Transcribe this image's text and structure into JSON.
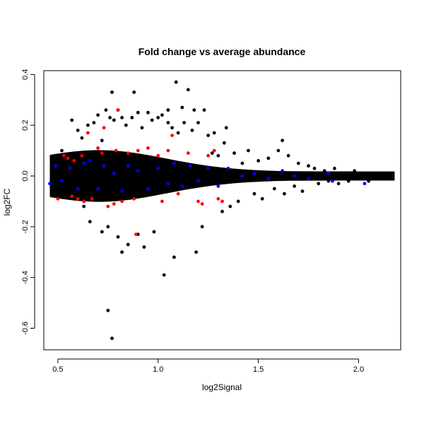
{
  "chart_data": {
    "type": "scatter",
    "title": "Fold change vs average abundance",
    "xlabel": "log2Signal",
    "ylabel": "log2FC",
    "xlim": [
      0.43,
      2.21
    ],
    "ylim": [
      -0.685,
      0.415
    ],
    "x_ticks": [
      0.5,
      1.0,
      1.5,
      2.0
    ],
    "x_tick_labels": [
      "0.5",
      "1.0",
      "1.5",
      "2.0"
    ],
    "y_ticks": [
      -0.6,
      -0.4,
      -0.2,
      0.0,
      0.2,
      0.4
    ],
    "y_tick_labels": [
      "-0.6",
      "-0.4",
      "-0.2",
      "0.0",
      "0.2",
      "0.4"
    ],
    "grid": false,
    "legend": "none",
    "colors": {
      "background": "#000000",
      "red": "#ff0000",
      "blue": "#0000ff"
    },
    "series": [
      {
        "color": "#000000",
        "values": [
          [
            0.47,
            -0.03
          ],
          [
            0.48,
            0.02
          ],
          [
            0.5,
            -0.05
          ],
          [
            0.52,
            0.1
          ],
          [
            0.55,
            -0.08
          ],
          [
            0.57,
            0.22
          ],
          [
            0.6,
            0.18
          ],
          [
            0.62,
            0.15
          ],
          [
            0.63,
            -0.12
          ],
          [
            0.65,
            0.2
          ],
          [
            0.66,
            -0.18
          ],
          [
            0.68,
            0.21
          ],
          [
            0.7,
            0.24
          ],
          [
            0.72,
            0.14
          ],
          [
            0.72,
            -0.22
          ],
          [
            0.74,
            0.26
          ],
          [
            0.75,
            -0.53
          ],
          [
            0.75,
            -0.2
          ],
          [
            0.76,
            0.23
          ],
          [
            0.77,
            0.33
          ],
          [
            0.77,
            -0.64
          ],
          [
            0.78,
            0.22
          ],
          [
            0.8,
            0.26
          ],
          [
            0.8,
            -0.24
          ],
          [
            0.82,
            0.23
          ],
          [
            0.82,
            -0.3
          ],
          [
            0.84,
            0.2
          ],
          [
            0.85,
            -0.27
          ],
          [
            0.87,
            0.23
          ],
          [
            0.88,
            0.33
          ],
          [
            0.9,
            0.25
          ],
          [
            0.9,
            -0.23
          ],
          [
            0.92,
            0.19
          ],
          [
            0.93,
            -0.28
          ],
          [
            0.95,
            0.25
          ],
          [
            0.97,
            0.22
          ],
          [
            0.98,
            -0.22
          ],
          [
            1.0,
            0.23
          ],
          [
            1.02,
            0.24
          ],
          [
            1.03,
            -0.39
          ],
          [
            1.05,
            0.26
          ],
          [
            1.05,
            0.21
          ],
          [
            1.07,
            0.19
          ],
          [
            1.08,
            -0.32
          ],
          [
            1.09,
            0.37
          ],
          [
            1.1,
            0.17
          ],
          [
            1.12,
            0.27
          ],
          [
            1.13,
            0.21
          ],
          [
            1.15,
            0.34
          ],
          [
            1.17,
            0.18
          ],
          [
            1.18,
            0.26
          ],
          [
            1.19,
            -0.3
          ],
          [
            1.2,
            0.21
          ],
          [
            1.22,
            -0.2
          ],
          [
            1.23,
            0.26
          ],
          [
            1.25,
            0.16
          ],
          [
            1.27,
            0.09
          ],
          [
            1.28,
            0.17
          ],
          [
            1.3,
            0.08
          ],
          [
            1.32,
            -0.14
          ],
          [
            1.33,
            0.13
          ],
          [
            1.34,
            0.19
          ],
          [
            1.36,
            -0.12
          ],
          [
            1.38,
            0.09
          ],
          [
            1.4,
            -0.1
          ],
          [
            1.42,
            0.05
          ],
          [
            1.45,
            0.1
          ],
          [
            1.48,
            -0.07
          ],
          [
            1.5,
            0.06
          ],
          [
            1.52,
            -0.09
          ],
          [
            1.55,
            0.07
          ],
          [
            1.58,
            -0.05
          ],
          [
            1.6,
            0.1
          ],
          [
            1.62,
            0.14
          ],
          [
            1.63,
            -0.07
          ],
          [
            1.65,
            0.08
          ],
          [
            1.68,
            -0.04
          ],
          [
            1.7,
            0.05
          ],
          [
            1.72,
            -0.06
          ],
          [
            1.75,
            0.04
          ],
          [
            1.78,
            0.03
          ],
          [
            1.8,
            -0.03
          ],
          [
            1.83,
            0.02
          ],
          [
            1.85,
            -0.02
          ],
          [
            1.88,
            0.03
          ],
          [
            1.9,
            -0.03
          ],
          [
            1.92,
            0.01
          ],
          [
            1.95,
            -0.02
          ],
          [
            1.98,
            0.02
          ],
          [
            2.0,
            -0.01
          ],
          [
            2.03,
            0.0
          ],
          [
            2.05,
            -0.02
          ],
          [
            2.08,
            0.01
          ],
          [
            2.1,
            -0.01
          ],
          [
            2.12,
            0.01
          ],
          [
            2.15,
            0.0
          ],
          [
            2.17,
            0.0
          ]
        ]
      },
      {
        "color": "#ff0000",
        "values": [
          [
            0.5,
            -0.09
          ],
          [
            0.53,
            0.08
          ],
          [
            0.55,
            0.07
          ],
          [
            0.57,
            -0.08
          ],
          [
            0.58,
            0.06
          ],
          [
            0.6,
            -0.09
          ],
          [
            0.62,
            0.08
          ],
          [
            0.63,
            -0.1
          ],
          [
            0.65,
            0.17
          ],
          [
            0.67,
            -0.09
          ],
          [
            0.7,
            0.11
          ],
          [
            0.72,
            0.09
          ],
          [
            0.73,
            0.19
          ],
          [
            0.75,
            -0.12
          ],
          [
            0.78,
            -0.11
          ],
          [
            0.79,
            0.1
          ],
          [
            0.8,
            0.26
          ],
          [
            0.82,
            -0.1
          ],
          [
            0.85,
            0.09
          ],
          [
            0.88,
            -0.09
          ],
          [
            0.89,
            -0.23
          ],
          [
            0.9,
            0.1
          ],
          [
            0.95,
            0.11
          ],
          [
            1.0,
            0.08
          ],
          [
            1.02,
            -0.1
          ],
          [
            1.05,
            0.1
          ],
          [
            1.07,
            0.16
          ],
          [
            1.1,
            -0.07
          ],
          [
            1.15,
            0.09
          ],
          [
            1.2,
            -0.1
          ],
          [
            1.22,
            -0.11
          ],
          [
            1.25,
            0.08
          ],
          [
            1.28,
            0.1
          ],
          [
            1.3,
            -0.09
          ],
          [
            1.32,
            -0.1
          ]
        ]
      },
      {
        "color": "#0000ff",
        "values": [
          [
            0.46,
            -0.03
          ],
          [
            0.49,
            0.04
          ],
          [
            0.52,
            -0.02
          ],
          [
            0.56,
            0.03
          ],
          [
            0.6,
            -0.05
          ],
          [
            0.63,
            0.05
          ],
          [
            0.66,
            0.06
          ],
          [
            0.7,
            -0.05
          ],
          [
            0.73,
            0.04
          ],
          [
            0.78,
            0.01
          ],
          [
            0.82,
            -0.06
          ],
          [
            0.85,
            0.04
          ],
          [
            0.9,
            0.02
          ],
          [
            0.95,
            -0.05
          ],
          [
            1.0,
            0.03
          ],
          [
            1.05,
            -0.03
          ],
          [
            1.08,
            0.05
          ],
          [
            1.12,
            -0.04
          ],
          [
            1.16,
            0.04
          ],
          [
            1.2,
            -0.02
          ],
          [
            1.25,
            0.03
          ],
          [
            1.3,
            -0.04
          ],
          [
            1.35,
            0.03
          ],
          [
            1.42,
            0.0
          ],
          [
            1.48,
            0.01
          ],
          [
            1.55,
            -0.01
          ],
          [
            1.62,
            0.02
          ],
          [
            1.68,
            0.0
          ],
          [
            1.75,
            -0.01
          ],
          [
            1.85,
            0.01
          ],
          [
            1.87,
            -0.02
          ],
          [
            2.03,
            -0.03
          ]
        ]
      }
    ]
  }
}
